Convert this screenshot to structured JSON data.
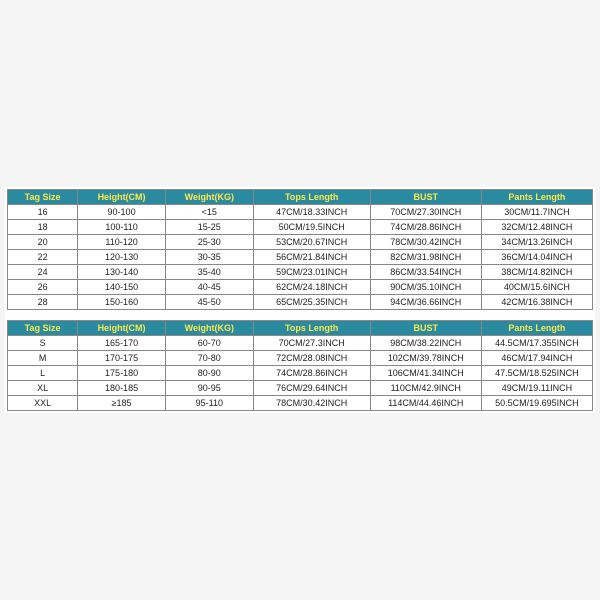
{
  "header_bg": "#2a8aa0",
  "header_text_color": "#ffe84a",
  "columns": [
    "Tag Size",
    "Height(CM)",
    "Weight(KG)",
    "Tops Length",
    "BUST",
    "Pants Length"
  ],
  "table1_rows": [
    [
      "16",
      "90-100",
      "<15",
      "47CM/18.33INCH",
      "70CM/27.30INCH",
      "30CM/11.7INCH"
    ],
    [
      "18",
      "100-110",
      "15-25",
      "50CM/19.5INCH",
      "74CM/28.86INCH",
      "32CM/12.48INCH"
    ],
    [
      "20",
      "110-120",
      "25-30",
      "53CM/20.67INCH",
      "78CM/30.42INCH",
      "34CM/13.26INCH"
    ],
    [
      "22",
      "120-130",
      "30-35",
      "56CM/21.84INCH",
      "82CM/31.98INCH",
      "36CM/14.04INCH"
    ],
    [
      "24",
      "130-140",
      "35-40",
      "59CM/23.01INCH",
      "86CM/33.54INCH",
      "38CM/14.82INCH"
    ],
    [
      "26",
      "140-150",
      "40-45",
      "62CM/24.18INCH",
      "90CM/35.10INCH",
      "40CM/15.6INCH"
    ],
    [
      "28",
      "150-160",
      "45-50",
      "65CM/25.35INCH",
      "94CM/36.66INCH",
      "42CM/16.38INCH"
    ]
  ],
  "table2_rows": [
    [
      "S",
      "165-170",
      "60-70",
      "70CM/27.3INCH",
      "98CM/38.22INCH",
      "44.5CM/17.355INCH"
    ],
    [
      "M",
      "170-175",
      "70-80",
      "72CM/28.08INCH",
      "102CM/39.78INCH",
      "46CM/17.94INCH"
    ],
    [
      "L",
      "175-180",
      "80-90",
      "74CM/28.86INCH",
      "106CM/41.34INCH",
      "47.5CM/18.525INCH"
    ],
    [
      "XL",
      "180-185",
      "90-95",
      "76CM/29.64INCH",
      "110CM/42.9INCH",
      "49CM/19.11INCH"
    ],
    [
      "XXL",
      "≥185",
      "95-110",
      "78CM/30.42INCH",
      "114CM/44.46INCH",
      "50.5CM/19.695INCH"
    ]
  ]
}
